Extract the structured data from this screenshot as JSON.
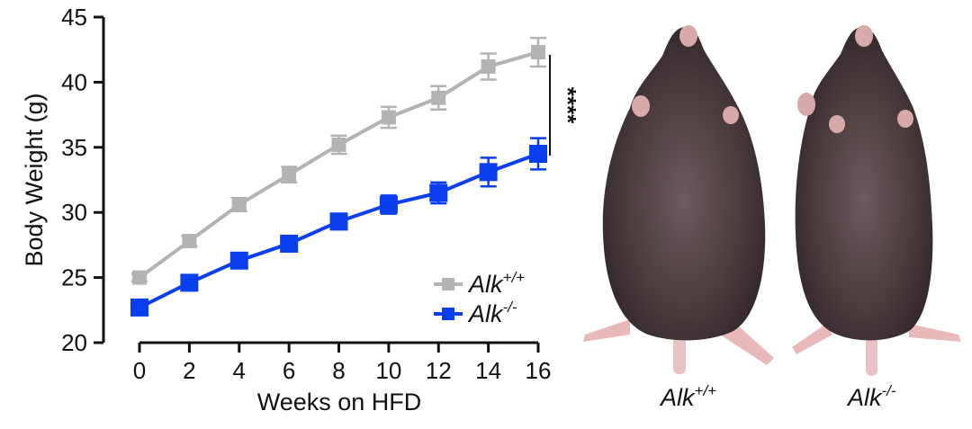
{
  "chart_data": {
    "type": "line",
    "x": [
      0,
      2,
      4,
      6,
      8,
      10,
      12,
      14,
      16
    ],
    "xlabel": "Weeks on HFD",
    "ylabel": "Body Weight (g)",
    "xlim": [
      0,
      16
    ],
    "ylim": [
      20,
      45
    ],
    "xticks": [
      "0",
      "2",
      "4",
      "6",
      "8",
      "10",
      "12",
      "14",
      "16"
    ],
    "yticks": [
      "20",
      "25",
      "30",
      "35",
      "40",
      "45"
    ],
    "grid": false,
    "legend_position": "bottom-right",
    "series": [
      {
        "name_base": "Alk",
        "name_sup": "+/+",
        "color": "#b3b3b3",
        "marker": "square",
        "values": [
          25.0,
          27.8,
          30.6,
          32.9,
          35.2,
          37.3,
          38.8,
          41.2,
          42.3
        ],
        "errors": [
          0.3,
          0.4,
          0.5,
          0.6,
          0.7,
          0.8,
          0.9,
          1.0,
          1.1
        ]
      },
      {
        "name_base": "Alk",
        "name_sup": "-/-",
        "color": "#0a3ff0",
        "marker": "square",
        "values": [
          22.7,
          24.6,
          26.3,
          27.6,
          29.3,
          30.6,
          31.5,
          33.1,
          34.5
        ],
        "errors": [
          0.3,
          0.3,
          0.4,
          0.5,
          0.6,
          0.7,
          0.8,
          1.1,
          1.2
        ]
      }
    ],
    "significance": "****"
  },
  "photo": {
    "captions": [
      {
        "base": "Alk",
        "sup": "+/+"
      },
      {
        "base": "Alk",
        "sup": "-/-"
      }
    ]
  },
  "colors": {
    "mouse_fur": "#4a3b3d",
    "mouse_skin": "#e9b8b8"
  }
}
